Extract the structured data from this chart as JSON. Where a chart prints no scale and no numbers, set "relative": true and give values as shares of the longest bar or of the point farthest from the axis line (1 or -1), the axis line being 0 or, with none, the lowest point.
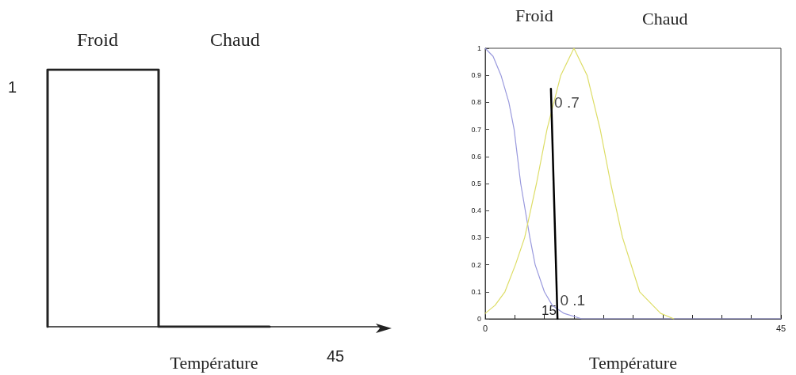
{
  "chart_data": [
    {
      "type": "step",
      "relative": true,
      "xlabel": "Température",
      "annotations": [
        "Froid",
        "Chaud",
        "1",
        "45"
      ],
      "categories": [
        null,
        null,
        null,
        null
      ],
      "series": [
        {
          "color": "#222222",
          "values": [
            0,
            1,
            0,
            null
          ]
        }
      ],
      "marker": "none",
      "line_style": "solid"
    },
    {
      "type": "line",
      "xlabel": "Température",
      "annotations": [
        "Froid",
        "Chaud",
        {
          "text": "0 .7",
          "x": 10.5,
          "y": 0.8
        },
        {
          "text": "0 .1",
          "x": 11.4,
          "y": 0.07
        },
        "15"
      ],
      "series": [
        {
          "color": "#9999dd",
          "x": [
            0,
            1.2,
            2.4,
            3.6,
            4.4,
            5.4,
            6.8,
            7.6,
            9.0,
            10.2,
            12,
            14.7,
            45
          ],
          "values": [
            1,
            0.97,
            0.9,
            0.8,
            0.7,
            0.5,
            0.3,
            0.2,
            0.1,
            0.05,
            0.02,
            0,
            0
          ]
        },
        {
          "color": "#dddd66",
          "x": [
            0,
            1.5,
            3.0,
            4.6,
            6.0,
            7.8,
            9.4,
            11.5,
            13.5,
            15.5,
            17.5,
            19.1,
            20.9,
            23.5,
            26.7,
            28.7
          ],
          "values": [
            0.02,
            0.05,
            0.1,
            0.2,
            0.3,
            0.5,
            0.7,
            0.9,
            1,
            0.9,
            0.7,
            0.5,
            0.3,
            0.1,
            0.02,
            0
          ]
        },
        {
          "color": "#000000",
          "x": [
            10,
            11
          ],
          "values": [
            0.85,
            0
          ]
        }
      ],
      "xlim": [
        0,
        45
      ],
      "xticks": [
        0,
        {
          "value": 4.5,
          "label": null
        },
        {
          "value": 9,
          "label": null
        },
        {
          "value": 13.5,
          "label": null
        },
        {
          "value": 18,
          "label": null
        },
        {
          "value": 22.5,
          "label": null
        },
        {
          "value": 27,
          "label": null
        },
        {
          "value": 31.5,
          "label": null
        },
        {
          "value": 36,
          "label": null
        },
        {
          "value": 40.5,
          "label": null
        },
        45
      ],
      "ylim": [
        0,
        1
      ],
      "yticks": [
        0,
        0.1,
        0.2,
        0.3,
        0.4,
        0.5,
        0.6,
        0.7,
        0.8,
        0.9,
        1
      ],
      "marker": "none",
      "line_style": "solid"
    }
  ]
}
